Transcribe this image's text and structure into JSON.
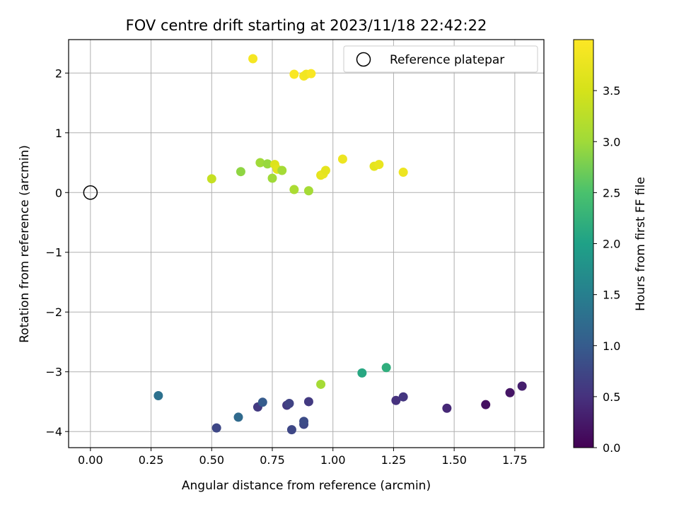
{
  "chart_data": {
    "type": "scatter",
    "title": "FOV centre drift starting at 2023/11/18 22:42:22",
    "xlabel": "Angular distance from reference (arcmin)",
    "ylabel": "Rotation from reference (arcmin)",
    "xlim": [
      -0.09,
      1.87
    ],
    "ylim": [
      -4.27,
      2.56
    ],
    "xticks": [
      0.0,
      0.25,
      0.5,
      0.75,
      1.0,
      1.25,
      1.5,
      1.75
    ],
    "xtick_labels": [
      "0.00",
      "0.25",
      "0.50",
      "0.75",
      "1.00",
      "1.25",
      "1.50",
      "1.75"
    ],
    "yticks": [
      2,
      1,
      0,
      -1,
      -2,
      -3,
      -4
    ],
    "ytick_labels": [
      "2",
      "1",
      "0",
      "−1",
      "−2",
      "−3",
      "−4"
    ],
    "grid": true,
    "legend": {
      "position": "top-right",
      "entries": [
        "Reference platepar"
      ]
    },
    "reference_point": {
      "x": 0.0,
      "y": 0.0
    },
    "colorbar": {
      "label": "Hours from first FF file",
      "colormap": "viridis",
      "range": [
        0.0,
        4.0
      ],
      "ticks": [
        0.0,
        0.5,
        1.0,
        1.5,
        2.0,
        2.5,
        3.0,
        3.5
      ],
      "tick_labels": [
        "0.0",
        "0.5",
        "1.0",
        "1.5",
        "2.0",
        "2.5",
        "3.0",
        "3.5"
      ]
    },
    "series": [
      {
        "points": [
          {
            "x": 0.67,
            "y": 2.24,
            "c": 3.9
          },
          {
            "x": 0.84,
            "y": 1.98,
            "c": 3.95
          },
          {
            "x": 0.88,
            "y": 1.95,
            "c": 3.9
          },
          {
            "x": 0.89,
            "y": 1.98,
            "c": 3.85
          },
          {
            "x": 0.91,
            "y": 1.99,
            "c": 3.95
          },
          {
            "x": 0.5,
            "y": 0.23,
            "c": 3.35
          },
          {
            "x": 0.62,
            "y": 0.35,
            "c": 2.9
          },
          {
            "x": 0.7,
            "y": 0.5,
            "c": 3.0
          },
          {
            "x": 0.73,
            "y": 0.48,
            "c": 2.95
          },
          {
            "x": 0.75,
            "y": 0.24,
            "c": 3.0
          },
          {
            "x": 0.76,
            "y": 0.47,
            "c": 3.6
          },
          {
            "x": 0.77,
            "y": 0.39,
            "c": 3.65
          },
          {
            "x": 0.79,
            "y": 0.37,
            "c": 3.05
          },
          {
            "x": 0.84,
            "y": 0.05,
            "c": 3.1
          },
          {
            "x": 0.9,
            "y": 0.03,
            "c": 3.05
          },
          {
            "x": 0.95,
            "y": 0.29,
            "c": 3.7
          },
          {
            "x": 0.96,
            "y": 0.31,
            "c": 3.75
          },
          {
            "x": 0.97,
            "y": 0.37,
            "c": 3.7
          },
          {
            "x": 1.04,
            "y": 0.56,
            "c": 3.8
          },
          {
            "x": 1.17,
            "y": 0.44,
            "c": 3.7
          },
          {
            "x": 1.19,
            "y": 0.47,
            "c": 3.75
          },
          {
            "x": 1.29,
            "y": 0.34,
            "c": 3.8
          },
          {
            "x": 0.28,
            "y": -3.4,
            "c": 1.3
          },
          {
            "x": 0.52,
            "y": -3.94,
            "c": 0.75
          },
          {
            "x": 0.61,
            "y": -3.76,
            "c": 1.2
          },
          {
            "x": 0.69,
            "y": -3.59,
            "c": 0.6
          },
          {
            "x": 0.71,
            "y": -3.51,
            "c": 1.0
          },
          {
            "x": 0.81,
            "y": -3.56,
            "c": 0.6
          },
          {
            "x": 0.82,
            "y": -3.53,
            "c": 0.7
          },
          {
            "x": 0.83,
            "y": -3.97,
            "c": 0.75
          },
          {
            "x": 0.88,
            "y": -3.88,
            "c": 0.75
          },
          {
            "x": 0.88,
            "y": -3.83,
            "c": 0.8
          },
          {
            "x": 0.9,
            "y": -3.5,
            "c": 0.6
          },
          {
            "x": 0.95,
            "y": -3.21,
            "c": 3.05
          },
          {
            "x": 1.12,
            "y": -3.02,
            "c": 2.1
          },
          {
            "x": 1.22,
            "y": -2.93,
            "c": 2.2
          },
          {
            "x": 1.26,
            "y": -3.48,
            "c": 0.5
          },
          {
            "x": 1.29,
            "y": -3.42,
            "c": 0.55
          },
          {
            "x": 1.47,
            "y": -3.61,
            "c": 0.4
          },
          {
            "x": 1.63,
            "y": -3.55,
            "c": 0.15
          },
          {
            "x": 1.73,
            "y": -3.35,
            "c": 0.2
          },
          {
            "x": 1.78,
            "y": -3.24,
            "c": 0.3
          }
        ]
      }
    ]
  }
}
